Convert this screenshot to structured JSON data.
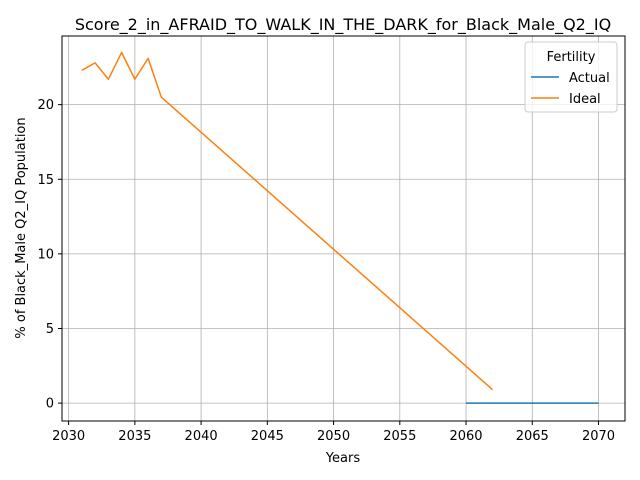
{
  "chart_data": {
    "type": "line",
    "title": "Score_2_in_AFRAID_TO_WALK_IN_THE_DARK_for_Black_Male_Q2_IQ",
    "xlabel": "Years",
    "ylabel": "% of Black_Male Q2_IQ Population",
    "xlim": [
      2029.5,
      2072.0
    ],
    "ylim": [
      -1.2,
      24.6
    ],
    "xticks": [
      2030,
      2035,
      2040,
      2045,
      2050,
      2055,
      2060,
      2065,
      2070
    ],
    "yticks": [
      0,
      5,
      10,
      15,
      20
    ],
    "grid": true,
    "legend": {
      "title": "Fertility",
      "placement": "top-right",
      "entries": [
        "Actual",
        "Ideal"
      ]
    },
    "series": [
      {
        "name": "Actual",
        "color": "#1f77b4",
        "x": [
          2060,
          2061,
          2062,
          2063,
          2064,
          2065,
          2066,
          2067,
          2068,
          2069,
          2070
        ],
        "y": [
          0,
          0,
          0,
          0,
          0,
          0,
          0,
          0,
          0,
          0,
          0
        ]
      },
      {
        "name": "Ideal",
        "color": "#ff7f0e",
        "x": [
          2031,
          2032,
          2033,
          2034,
          2035,
          2036,
          2037,
          2062
        ],
        "y": [
          22.3,
          22.8,
          21.7,
          23.5,
          21.7,
          23.1,
          20.5,
          0.9
        ]
      }
    ]
  }
}
